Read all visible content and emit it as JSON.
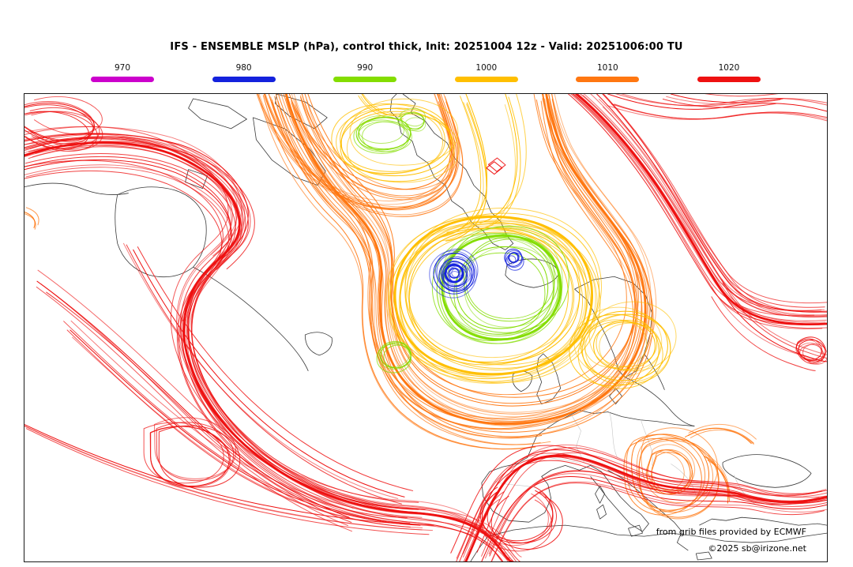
{
  "title": "IFS - ENSEMBLE MSLP (hPa), control thick, Init: 20251004 12z - Valid: 20251006:00 TU",
  "legend": {
    "items": [
      {
        "label": "970",
        "color": "#cc00cc"
      },
      {
        "label": "980",
        "color": "#1422dd"
      },
      {
        "label": "990",
        "color": "#84dd00"
      },
      {
        "label": "1000",
        "color": "#ffbf00"
      },
      {
        "label": "1010",
        "color": "#ff7711"
      },
      {
        "label": "1020",
        "color": "#ee1111"
      }
    ]
  },
  "credits": {
    "provider": "from grib files provided by ECMWF",
    "copyright": "©2025 sb@irizone.net"
  }
}
